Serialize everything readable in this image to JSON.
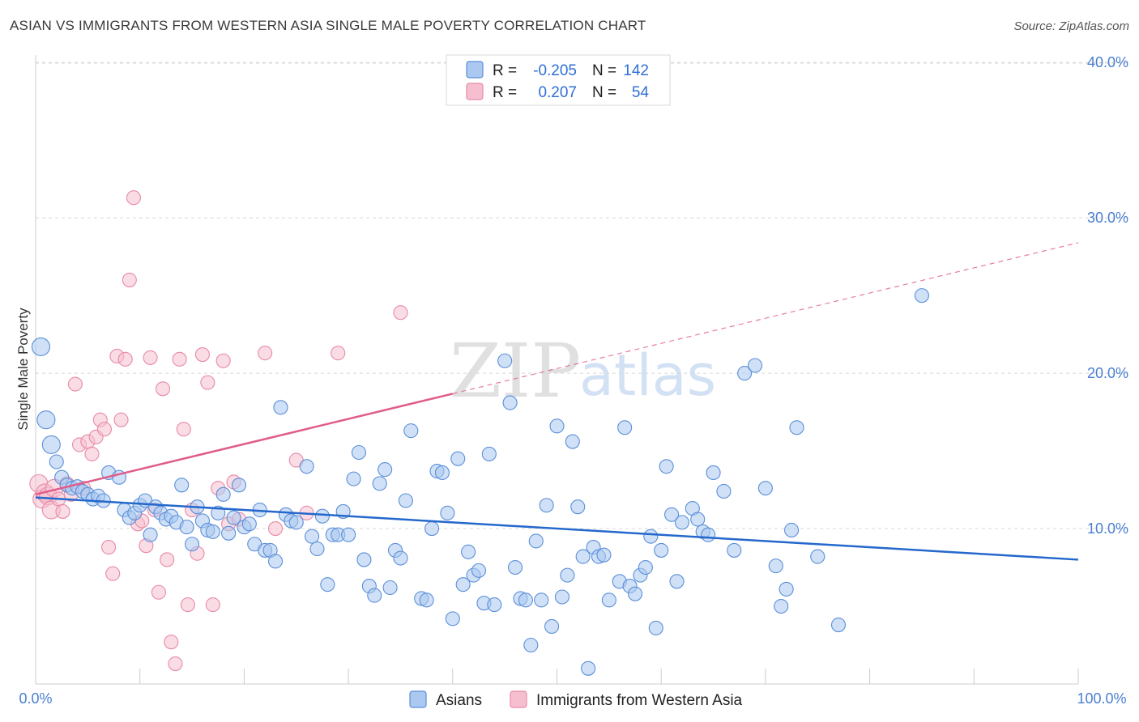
{
  "header": {
    "title": "ASIAN VS IMMIGRANTS FROM WESTERN ASIA SINGLE MALE POVERTY CORRELATION CHART",
    "source": "Source: ZipAtlas.com"
  },
  "watermark": {
    "zip": "ZIP",
    "atlas": "atlas"
  },
  "colors": {
    "asian_fill": "#aac8f0",
    "asian_stroke": "#5b8fd8",
    "asian_line": "#2468cc",
    "imm_fill": "#f6bfd0",
    "imm_stroke": "#e88aa8",
    "imm_line": "#e05c8a",
    "axis_text": "#4a7fd0",
    "grid": "#d8d8d8"
  },
  "legend": {
    "row1": {
      "r_label": "R =",
      "r_value": "-0.205",
      "n_label": "N =",
      "n_value": "142"
    },
    "row2": {
      "r_label": "R =",
      "r_value": "0.207",
      "n_label": "N =",
      "n_value": "54"
    }
  },
  "chart_data": {
    "type": "scatter",
    "title": "ASIAN VS IMMIGRANTS FROM WESTERN ASIA SINGLE MALE POVERTY CORRELATION CHART",
    "xlabel": "",
    "ylabel": "Single Male Poverty",
    "xlim": [
      0,
      100
    ],
    "ylim": [
      0,
      41
    ],
    "x_tick_labels": [
      "0.0%",
      "100.0%"
    ],
    "y_ticks": [
      10,
      20,
      30,
      40
    ],
    "y_tick_labels": [
      "10.0%",
      "20.0%",
      "30.0%",
      "40.0%"
    ],
    "grid": true,
    "series": [
      {
        "name": "Asians",
        "r": -0.205,
        "n": 142,
        "trend": {
          "x": [
            0,
            100
          ],
          "y": [
            12.0,
            8.0
          ],
          "dashed_after_x": null
        },
        "points": [
          [
            0.5,
            21.7
          ],
          [
            1,
            17
          ],
          [
            1.5,
            15.4
          ],
          [
            2,
            14.3
          ],
          [
            2.5,
            13.3
          ],
          [
            3,
            12.8
          ],
          [
            3.5,
            12.6
          ],
          [
            4,
            12.7
          ],
          [
            4.5,
            12.4
          ],
          [
            5,
            12.2
          ],
          [
            5.5,
            11.9
          ],
          [
            6,
            12.1
          ],
          [
            6.5,
            11.8
          ],
          [
            7,
            13.6
          ],
          [
            8,
            13.3
          ],
          [
            8.5,
            11.2
          ],
          [
            9,
            10.7
          ],
          [
            9.5,
            11
          ],
          [
            10,
            11.5
          ],
          [
            10.5,
            11.8
          ],
          [
            11,
            9.6
          ],
          [
            11.5,
            11.4
          ],
          [
            12,
            11
          ],
          [
            12.5,
            10.6
          ],
          [
            13,
            10.8
          ],
          [
            13.5,
            10.4
          ],
          [
            14,
            12.8
          ],
          [
            14.5,
            10.1
          ],
          [
            15,
            9
          ],
          [
            15.5,
            11.4
          ],
          [
            16,
            10.5
          ],
          [
            16.5,
            9.9
          ],
          [
            17,
            9.8
          ],
          [
            17.5,
            11
          ],
          [
            18,
            12.2
          ],
          [
            18.5,
            9.7
          ],
          [
            19,
            10.7
          ],
          [
            19.5,
            12.8
          ],
          [
            20,
            10.1
          ],
          [
            20.5,
            10.3
          ],
          [
            21,
            9
          ],
          [
            21.5,
            11.2
          ],
          [
            22,
            8.6
          ],
          [
            22.5,
            8.6
          ],
          [
            23,
            7.9
          ],
          [
            23.5,
            17.8
          ],
          [
            24,
            10.9
          ],
          [
            24.5,
            10.5
          ],
          [
            25,
            10.4
          ],
          [
            26,
            14
          ],
          [
            26.5,
            9.5
          ],
          [
            27,
            8.7
          ],
          [
            27.5,
            10.8
          ],
          [
            28,
            6.4
          ],
          [
            28.5,
            9.6
          ],
          [
            29,
            9.6
          ],
          [
            29.5,
            11.1
          ],
          [
            30,
            9.6
          ],
          [
            30.5,
            13.2
          ],
          [
            31,
            14.9
          ],
          [
            31.5,
            8
          ],
          [
            32,
            6.3
          ],
          [
            32.5,
            5.7
          ],
          [
            33,
            12.9
          ],
          [
            33.5,
            13.8
          ],
          [
            34,
            6.2
          ],
          [
            34.5,
            8.6
          ],
          [
            35,
            8.1
          ],
          [
            35.5,
            11.8
          ],
          [
            36,
            16.3
          ],
          [
            37,
            5.5
          ],
          [
            37.5,
            5.4
          ],
          [
            38,
            10
          ],
          [
            38.5,
            13.7
          ],
          [
            39,
            13.6
          ],
          [
            39.5,
            11
          ],
          [
            40,
            4.2
          ],
          [
            40.5,
            14.5
          ],
          [
            41,
            6.4
          ],
          [
            41.5,
            8.5
          ],
          [
            42,
            7
          ],
          [
            42.5,
            7.3
          ],
          [
            43,
            5.2
          ],
          [
            43.5,
            14.8
          ],
          [
            44,
            5.1
          ],
          [
            45,
            20.8
          ],
          [
            45.5,
            18.1
          ],
          [
            46,
            7.5
          ],
          [
            46.5,
            5.5
          ],
          [
            47,
            5.4
          ],
          [
            47.5,
            2.5
          ],
          [
            48,
            9.2
          ],
          [
            48.5,
            5.4
          ],
          [
            49,
            11.5
          ],
          [
            49.5,
            3.7
          ],
          [
            50,
            16.6
          ],
          [
            50.5,
            5.6
          ],
          [
            51,
            7
          ],
          [
            51.5,
            15.6
          ],
          [
            52,
            11.4
          ],
          [
            52.5,
            8.2
          ],
          [
            53,
            1
          ],
          [
            53.5,
            8.8
          ],
          [
            54,
            8.2
          ],
          [
            54.5,
            8.3
          ],
          [
            55,
            5.4
          ],
          [
            56,
            6.6
          ],
          [
            56.5,
            16.5
          ],
          [
            57,
            6.3
          ],
          [
            57.5,
            5.8
          ],
          [
            58,
            7
          ],
          [
            58.5,
            7.5
          ],
          [
            59,
            9.5
          ],
          [
            59.5,
            3.6
          ],
          [
            60,
            8.6
          ],
          [
            60.5,
            14
          ],
          [
            61,
            10.9
          ],
          [
            61.5,
            6.6
          ],
          [
            62,
            10.4
          ],
          [
            63,
            11.3
          ],
          [
            63.5,
            10.6
          ],
          [
            64,
            9.8
          ],
          [
            64.5,
            9.6
          ],
          [
            65,
            13.6
          ],
          [
            66,
            12.4
          ],
          [
            67,
            8.6
          ],
          [
            68,
            20
          ],
          [
            69,
            20.5
          ],
          [
            70,
            12.6
          ],
          [
            71,
            7.6
          ],
          [
            71.5,
            5
          ],
          [
            72,
            6.1
          ],
          [
            72.5,
            9.9
          ],
          [
            73,
            16.5
          ],
          [
            75,
            8.2
          ],
          [
            77,
            3.8
          ],
          [
            85,
            25
          ]
        ]
      },
      {
        "name": "Immigrants from Western Asia",
        "r": 0.207,
        "n": 54,
        "trend": {
          "x": [
            0,
            100
          ],
          "y": [
            12.2,
            28.4
          ],
          "dashed_after_x": 40
        },
        "points": [
          [
            0.3,
            12.9
          ],
          [
            0.6,
            11.9
          ],
          [
            0.9,
            12.3
          ],
          [
            1.2,
            12.1
          ],
          [
            1.5,
            11.2
          ],
          [
            1.8,
            12.6
          ],
          [
            2.2,
            11.9
          ],
          [
            2.6,
            11.1
          ],
          [
            3,
            12.9
          ],
          [
            3.4,
            12.2
          ],
          [
            3.8,
            19.3
          ],
          [
            4.2,
            15.4
          ],
          [
            4.6,
            12.6
          ],
          [
            5,
            15.6
          ],
          [
            5.4,
            14.8
          ],
          [
            5.8,
            15.9
          ],
          [
            6.2,
            17
          ],
          [
            6.6,
            16.4
          ],
          [
            7,
            8.8
          ],
          [
            7.4,
            7.1
          ],
          [
            7.8,
            21.1
          ],
          [
            8.2,
            17
          ],
          [
            8.6,
            20.9
          ],
          [
            9,
            26
          ],
          [
            9.4,
            31.3
          ],
          [
            9.8,
            10.3
          ],
          [
            10.2,
            10.5
          ],
          [
            10.6,
            8.9
          ],
          [
            11,
            21
          ],
          [
            11.4,
            11.2
          ],
          [
            11.8,
            5.9
          ],
          [
            12.2,
            19
          ],
          [
            12.6,
            8
          ],
          [
            13,
            2.7
          ],
          [
            13.4,
            1.3
          ],
          [
            13.8,
            20.9
          ],
          [
            14.2,
            16.4
          ],
          [
            14.6,
            5.1
          ],
          [
            15,
            11.2
          ],
          [
            15.5,
            8.4
          ],
          [
            16,
            21.2
          ],
          [
            16.5,
            19.4
          ],
          [
            17,
            5.1
          ],
          [
            17.5,
            12.6
          ],
          [
            18,
            20.8
          ],
          [
            18.5,
            10.3
          ],
          [
            19,
            13
          ],
          [
            19.5,
            10.6
          ],
          [
            22,
            21.3
          ],
          [
            23,
            10
          ],
          [
            25,
            14.4
          ],
          [
            26,
            11
          ],
          [
            29,
            21.3
          ],
          [
            35,
            23.9
          ]
        ]
      }
    ]
  },
  "bottom_legend": {
    "item1": "Asians",
    "item2": "Immigrants from Western Asia"
  }
}
